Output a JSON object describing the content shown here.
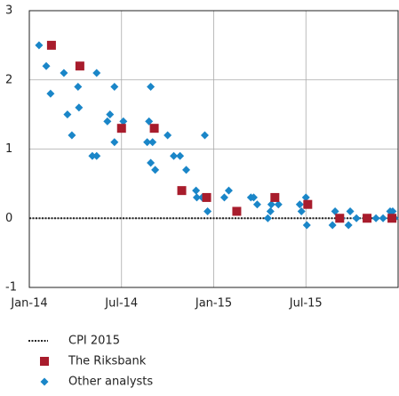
{
  "chart_data": {
    "type": "scatter",
    "xlim": [
      0,
      24
    ],
    "ylim": [
      -1,
      3
    ],
    "xticks": [
      {
        "value": 0,
        "label": "Jan-14"
      },
      {
        "value": 6,
        "label": "Jul-14"
      },
      {
        "value": 12,
        "label": "Jan-15"
      },
      {
        "value": 18,
        "label": "Jul-15"
      }
    ],
    "yticks": [
      3,
      2,
      1,
      0,
      -1
    ],
    "grid": true,
    "series": [
      {
        "name": "CPI 2015",
        "type": "line",
        "color": "#222222",
        "x": [
          0,
          24
        ],
        "values": [
          0,
          0
        ]
      },
      {
        "name": "The Riksbank",
        "type": "square",
        "color": "#a81c2c",
        "x": [
          1.44,
          3.29,
          6.0,
          8.13,
          9.92,
          11.54,
          13.5,
          15.98,
          18.12,
          20.2,
          21.98,
          23.6
        ],
        "values": [
          2.5,
          2.2,
          1.3,
          1.3,
          0.4,
          0.3,
          0.1,
          0.3,
          0.2,
          0,
          0,
          0
        ]
      },
      {
        "name": "Other analysts",
        "type": "diamond",
        "color": "#1a86c8",
        "x": [
          0.63,
          1.1,
          1.38,
          2.25,
          2.48,
          2.77,
          3.17,
          3.23,
          4.1,
          4.38,
          4.38,
          5.08,
          5.25,
          5.54,
          5.54,
          6.12,
          7.67,
          7.79,
          7.9,
          7.9,
          8.02,
          8.19,
          9.0,
          9.4,
          9.81,
          10.21,
          10.85,
          10.9,
          11.25,
          11.42,
          11.6,
          12.69,
          12.98,
          14.42,
          14.6,
          14.83,
          15.52,
          15.69,
          15.75,
          16.21,
          17.6,
          17.71,
          18.0,
          18.06,
          19.73,
          19.9,
          20.31,
          20.77,
          20.88,
          21.29,
          22.56,
          23.02,
          23.48,
          23.65,
          23.77
        ],
        "values": [
          2.5,
          2.2,
          1.8,
          2.1,
          1.5,
          1.2,
          1.9,
          1.6,
          0.9,
          0.9,
          2.1,
          1.4,
          1.5,
          1.9,
          1.1,
          1.4,
          1.1,
          1.4,
          1.9,
          0.8,
          1.1,
          0.7,
          1.2,
          0.9,
          0.9,
          0.7,
          0.4,
          0.3,
          0.3,
          1.2,
          0.1,
          0.3,
          0.4,
          0.3,
          0.3,
          0.2,
          0,
          0.1,
          0.2,
          0.2,
          0.2,
          0.1,
          0.3,
          -0.1,
          -0.1,
          0.1,
          0,
          -0.1,
          0.1,
          0,
          0,
          0,
          0.1,
          0.1,
          0
        ]
      }
    ]
  }
}
